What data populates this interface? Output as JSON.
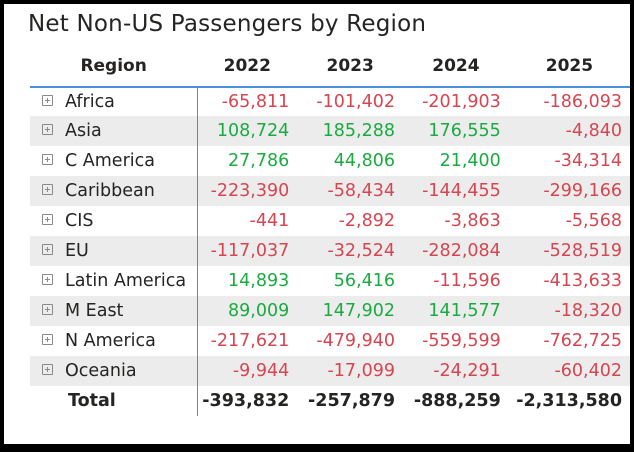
{
  "title": "Net Non-US Passengers by Region",
  "chart_data": {
    "type": "table",
    "title": "Net Non-US Passengers by Region",
    "columns": [
      "Region",
      "2022",
      "2023",
      "2024",
      "2025"
    ],
    "rows": [
      {
        "region": "Africa",
        "values": [
          "-65,811",
          "-101,402",
          "-201,903",
          "-186,093"
        ]
      },
      {
        "region": "Asia",
        "values": [
          "108,724",
          "185,288",
          "176,555",
          "-4,840"
        ]
      },
      {
        "region": "C America",
        "values": [
          "27,786",
          "44,806",
          "21,400",
          "-34,314"
        ]
      },
      {
        "region": "Caribbean",
        "values": [
          "-223,390",
          "-58,434",
          "-144,455",
          "-299,166"
        ]
      },
      {
        "region": "CIS",
        "values": [
          "-441",
          "-2,892",
          "-3,863",
          "-5,568"
        ]
      },
      {
        "region": "EU",
        "values": [
          "-117,037",
          "-32,524",
          "-282,084",
          "-528,519"
        ]
      },
      {
        "region": "Latin America",
        "values": [
          "14,893",
          "56,416",
          "-11,596",
          "-413,633"
        ]
      },
      {
        "region": "M East",
        "values": [
          "89,009",
          "147,902",
          "141,577",
          "-18,320"
        ]
      },
      {
        "region": "N America",
        "values": [
          "-217,621",
          "-479,940",
          "-559,599",
          "-762,725"
        ]
      },
      {
        "region": "Oceania",
        "values": [
          "-9,944",
          "-17,099",
          "-24,291",
          "-60,402"
        ]
      }
    ],
    "total": {
      "label": "Total",
      "values": [
        "-393,832",
        "-257,879",
        "-888,259",
        "-2,313,580"
      ]
    }
  },
  "colors": {
    "positive": "#1aab40",
    "negative": "#d64550",
    "accent_line": "#4a90d9"
  }
}
